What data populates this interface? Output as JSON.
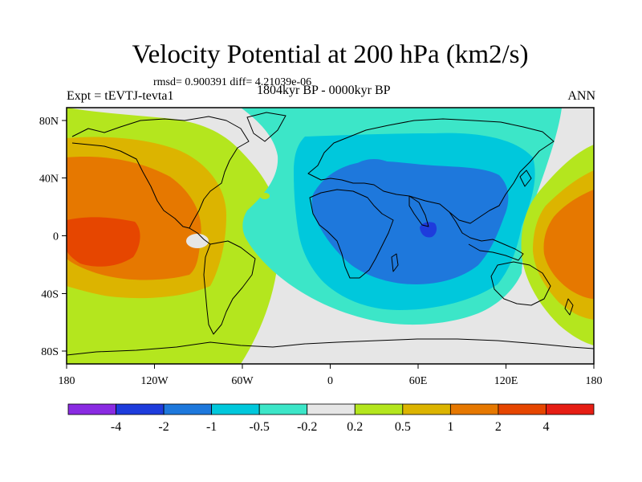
{
  "figure": {
    "title": "Velocity Potential at 200 hPa (km2/s)",
    "stats": "rmsd= 0.900391  diff= 4.21039e-06",
    "experiment": "Expt = tEVTJ-tevta1",
    "period": "1804kyr BP - 0000kyr BP",
    "season": "ANN"
  },
  "map": {
    "type": "filled-contour",
    "projection": "cylindrical-equidistant",
    "lon_range": [
      -180,
      180
    ],
    "lat_range": [
      -90,
      90
    ],
    "x_tick_labels": [
      "180",
      "120W",
      "60W",
      "0",
      "60E",
      "120E",
      "180"
    ],
    "y_tick_labels": [
      "80N",
      "40N",
      "0",
      "40S",
      "80S"
    ]
  },
  "colorbar": {
    "colors": [
      "#8a2be2",
      "#1e3cdc",
      "#1e78dc",
      "#00c8dc",
      "#3ce6c8",
      "#e6e6e6",
      "#b4e61e",
      "#dcb400",
      "#e67800",
      "#e64600",
      "#e61e14"
    ],
    "labels": [
      "-4",
      "-2",
      "-1",
      "-0.5",
      "-0.2",
      "0.2",
      "0.5",
      "1",
      "2",
      "4"
    ]
  }
}
